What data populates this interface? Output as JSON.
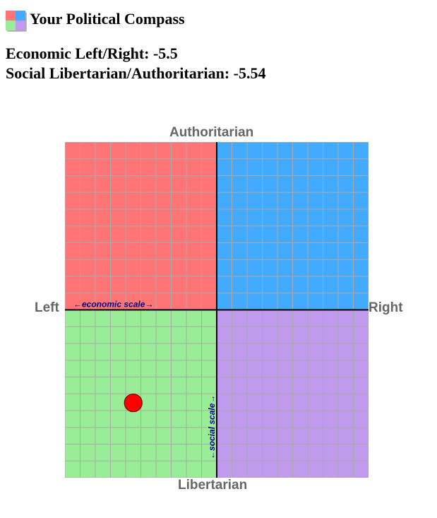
{
  "header": {
    "title": "Your Political Compass"
  },
  "scores": {
    "economic_text": "Economic Left/Right: -5.5",
    "social_text": "Social Libertarian/Authoritarian: -5.54"
  },
  "chart_data": {
    "type": "scatter",
    "title": "",
    "axes": {
      "top": "Authoritarian",
      "bottom": "Libertarian",
      "left": "Left",
      "right": "Right"
    },
    "xlabel": "←economic scale→",
    "ylabel": "←social scale→",
    "xlim": [
      -10,
      10
    ],
    "ylim": [
      -10,
      10
    ],
    "grid": true,
    "grid_step": 1,
    "quadrant_colors": {
      "authoritarian_left": "#ff7575",
      "authoritarian_right": "#42aaff",
      "libertarian_left": "#9aed97",
      "libertarian_right": "#c09aec"
    },
    "axis_color": "#000000",
    "grid_color": "#aaaaaa",
    "scale_label_color": "#000080",
    "point_color": "#ff0000",
    "series": [
      {
        "x": [
          -5.5
        ],
        "y": [
          -5.54
        ]
      }
    ]
  }
}
